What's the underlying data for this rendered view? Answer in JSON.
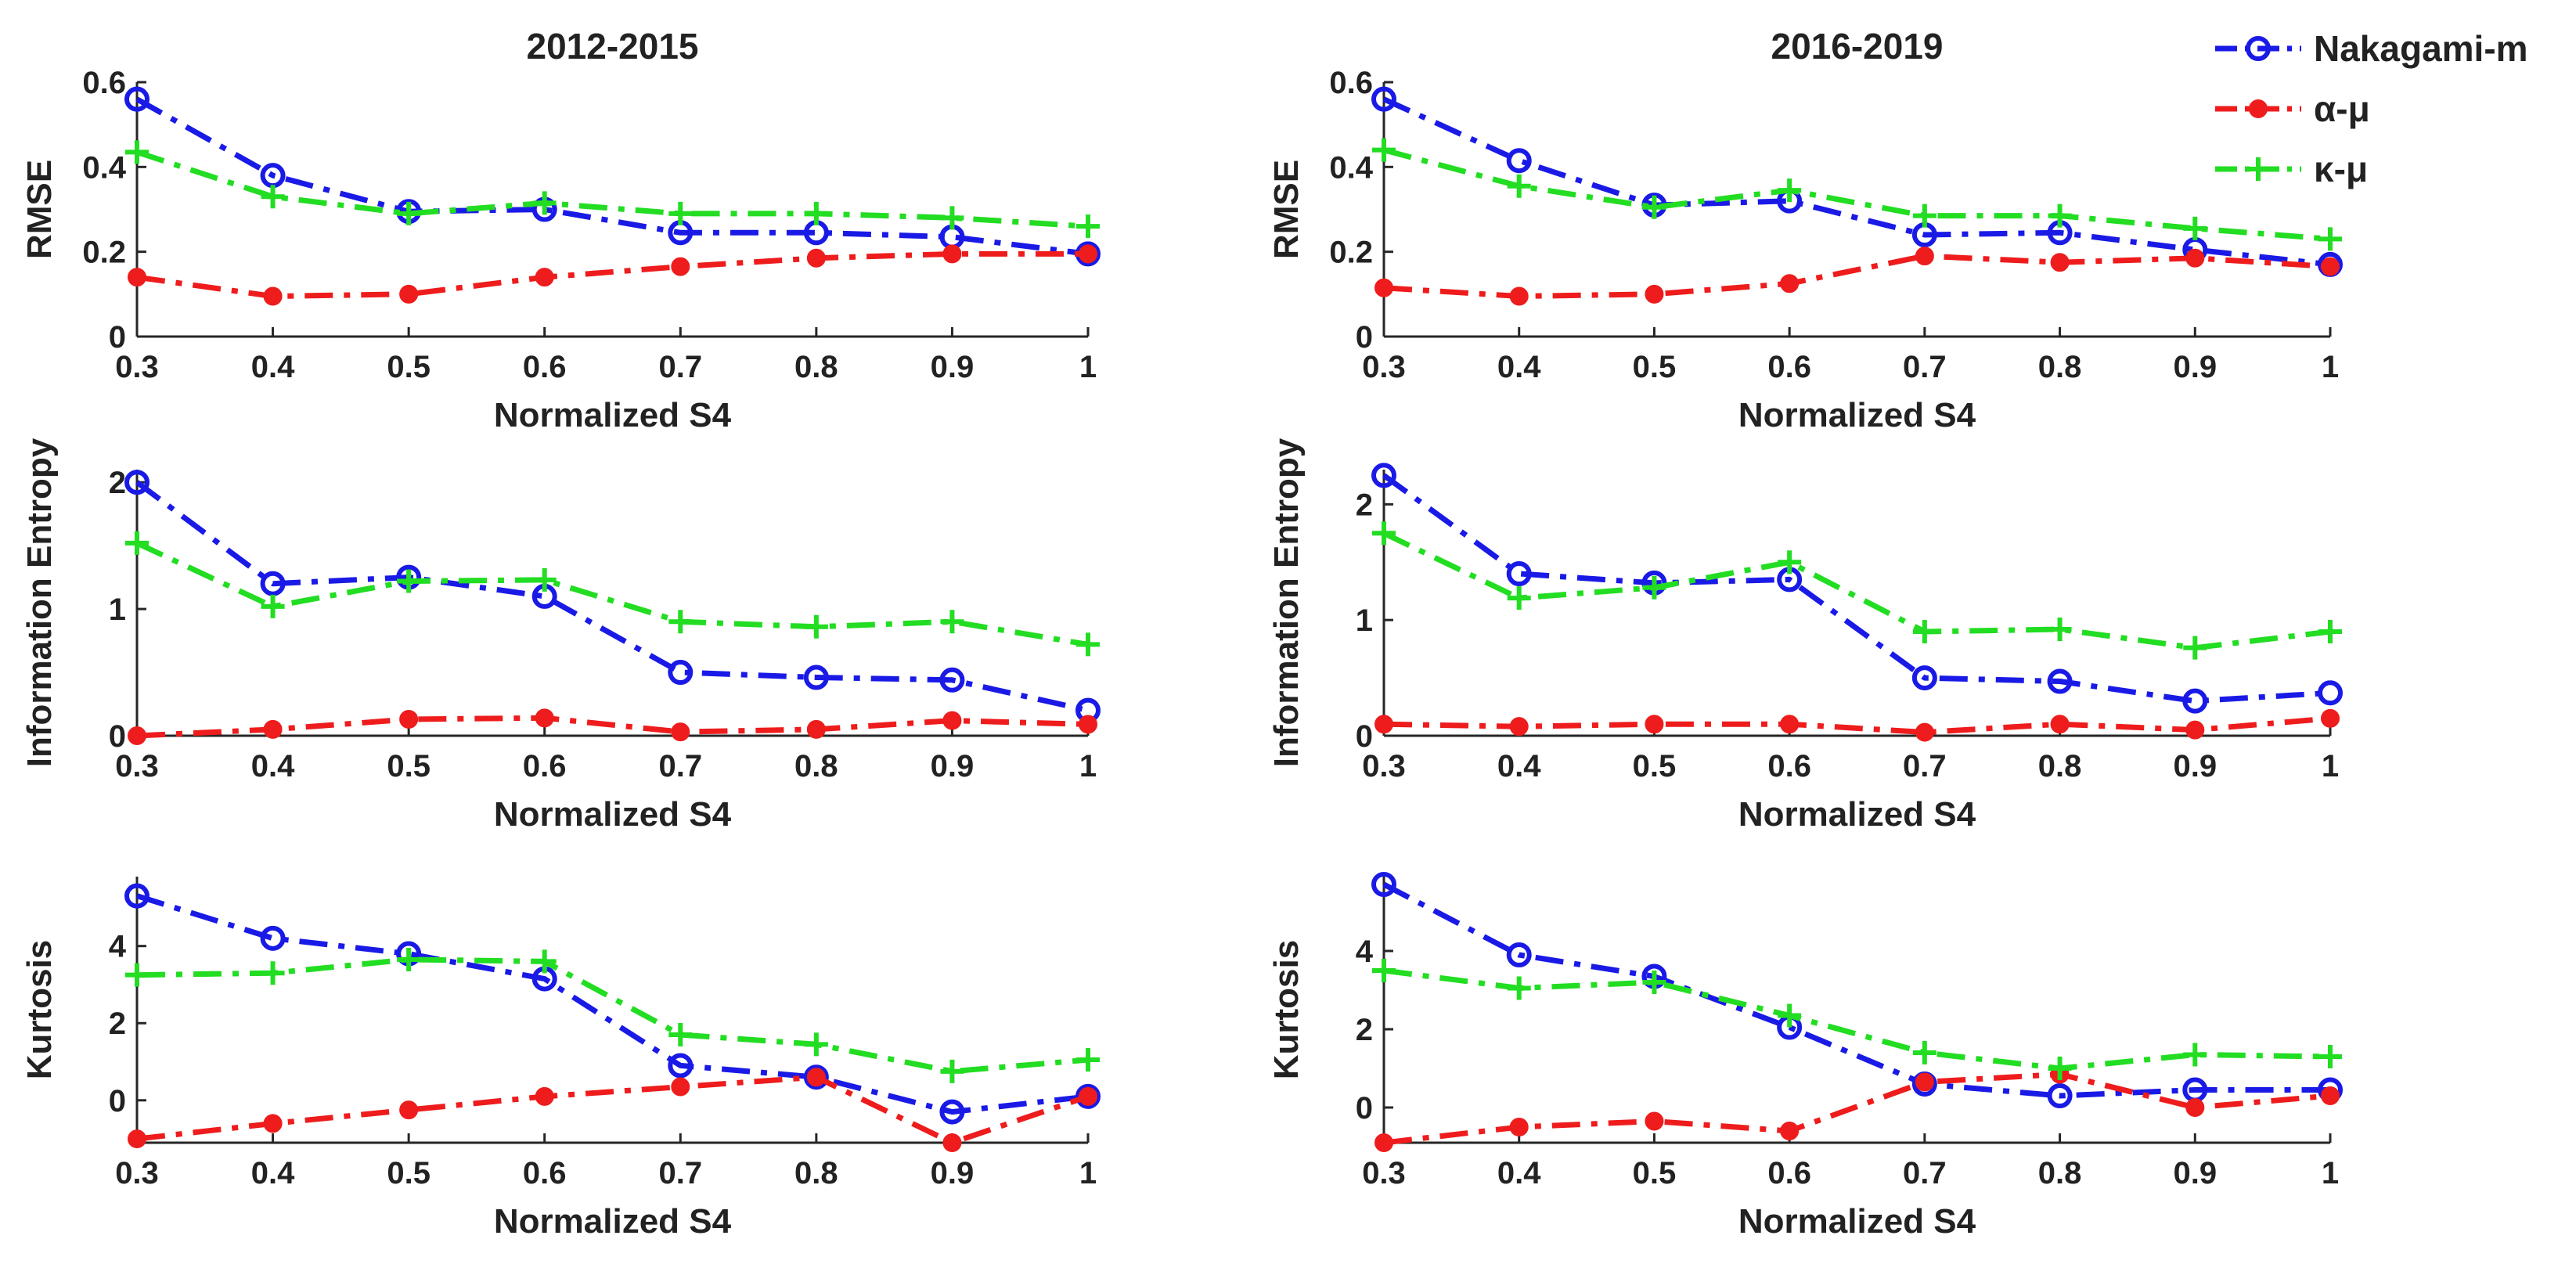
{
  "colors": {
    "Nakagami-m": "#1a1ae6",
    "α-μ": "#ee1c1c",
    "κ-μ": "#22dd22"
  },
  "legend": {
    "placement": "top-right",
    "entries": [
      {
        "name": "Nakagami-m",
        "marker": "circle"
      },
      {
        "name": "α-μ",
        "marker": "filled-circle"
      },
      {
        "name": "κ-μ",
        "marker": "plus"
      }
    ]
  },
  "chart_data": [
    {
      "type": "line",
      "title": "2012-2015",
      "xlabel": "Normalized S4",
      "ylabel": "RMSE",
      "x": [
        0.3,
        0.4,
        0.5,
        0.6,
        0.7,
        0.8,
        0.9,
        1
      ],
      "xticks": [
        "0.3",
        "0.4",
        "0.5",
        "0.6",
        "0.7",
        "0.8",
        "0.9",
        "1"
      ],
      "ylim": [
        0,
        0.6
      ],
      "yticks": [
        0,
        0.2,
        0.4,
        0.6
      ],
      "ytick_labels": [
        "0",
        "0.2",
        "0.4",
        "0.6"
      ],
      "series": [
        {
          "name": "Nakagami-m",
          "values": [
            0.56,
            0.38,
            0.295,
            0.3,
            0.245,
            0.245,
            0.235,
            0.195
          ]
        },
        {
          "name": "α-μ",
          "values": [
            0.14,
            0.095,
            0.1,
            0.14,
            0.165,
            0.185,
            0.195,
            0.195
          ]
        },
        {
          "name": "κ-μ",
          "values": [
            0.435,
            0.33,
            0.29,
            0.315,
            0.29,
            0.29,
            0.28,
            0.26
          ]
        }
      ]
    },
    {
      "type": "line",
      "title": "2016-2019",
      "xlabel": "Normalized S4",
      "ylabel": "RMSE",
      "x": [
        0.3,
        0.4,
        0.5,
        0.6,
        0.7,
        0.8,
        0.9,
        1
      ],
      "xticks": [
        "0.3",
        "0.4",
        "0.5",
        "0.6",
        "0.7",
        "0.8",
        "0.9",
        "1"
      ],
      "ylim": [
        0,
        0.6
      ],
      "yticks": [
        0,
        0.2,
        0.4,
        0.6
      ],
      "ytick_labels": [
        "0",
        "0.2",
        "0.4",
        "0.6"
      ],
      "series": [
        {
          "name": "Nakagami-m",
          "values": [
            0.56,
            0.415,
            0.31,
            0.32,
            0.24,
            0.245,
            0.205,
            0.17
          ]
        },
        {
          "name": "α-μ",
          "values": [
            0.115,
            0.095,
            0.1,
            0.125,
            0.19,
            0.175,
            0.185,
            0.165
          ]
        },
        {
          "name": "κ-μ",
          "values": [
            0.44,
            0.355,
            0.305,
            0.345,
            0.285,
            0.285,
            0.255,
            0.23
          ]
        }
      ]
    },
    {
      "type": "line",
      "title": "",
      "xlabel": "Normalized S4",
      "ylabel": "Information Entropy",
      "x": [
        0.3,
        0.4,
        0.5,
        0.6,
        0.7,
        0.8,
        0.9,
        1
      ],
      "xticks": [
        "0.3",
        "0.4",
        "0.5",
        "0.6",
        "0.7",
        "0.8",
        "0.9",
        "1"
      ],
      "ylim": [
        0,
        2.1
      ],
      "yticks": [
        0,
        1,
        2
      ],
      "ytick_labels": [
        "0",
        "1",
        "2"
      ],
      "series": [
        {
          "name": "Nakagami-m",
          "values": [
            2.0,
            1.2,
            1.25,
            1.1,
            0.5,
            0.46,
            0.44,
            0.2
          ]
        },
        {
          "name": "α-μ",
          "values": [
            0.0,
            0.05,
            0.13,
            0.14,
            0.03,
            0.05,
            0.12,
            0.09
          ]
        },
        {
          "name": "κ-μ",
          "values": [
            1.52,
            1.02,
            1.22,
            1.23,
            0.9,
            0.86,
            0.9,
            0.72
          ]
        }
      ]
    },
    {
      "type": "line",
      "title": "",
      "xlabel": "Normalized S4",
      "ylabel": "Information Entropy",
      "x": [
        0.3,
        0.4,
        0.5,
        0.6,
        0.7,
        0.8,
        0.9,
        1
      ],
      "xticks": [
        "0.3",
        "0.4",
        "0.5",
        "0.6",
        "0.7",
        "0.8",
        "0.9",
        "1"
      ],
      "ylim": [
        0,
        2.3
      ],
      "yticks": [
        0,
        1,
        2
      ],
      "ytick_labels": [
        "0",
        "1",
        "2"
      ],
      "series": [
        {
          "name": "Nakagami-m",
          "values": [
            2.25,
            1.4,
            1.32,
            1.35,
            0.5,
            0.47,
            0.3,
            0.37
          ]
        },
        {
          "name": "α-μ",
          "values": [
            0.1,
            0.08,
            0.1,
            0.1,
            0.03,
            0.1,
            0.05,
            0.15
          ]
        },
        {
          "name": "κ-μ",
          "values": [
            1.75,
            1.19,
            1.28,
            1.5,
            0.9,
            0.92,
            0.76,
            0.9
          ]
        }
      ]
    },
    {
      "type": "line",
      "title": "",
      "xlabel": "Normalized S4",
      "ylabel": "Kurtosis",
      "x": [
        0.3,
        0.4,
        0.5,
        0.6,
        0.7,
        0.8,
        0.9,
        1
      ],
      "xticks": [
        "0.3",
        "0.4",
        "0.5",
        "0.6",
        "0.7",
        "0.8",
        "0.9",
        "1"
      ],
      "ylim": [
        -1.1,
        5.8
      ],
      "yticks": [
        0,
        2,
        4
      ],
      "ytick_labels": [
        "0",
        "2",
        "4"
      ],
      "series": [
        {
          "name": "Nakagami-m",
          "values": [
            5.3,
            4.2,
            3.8,
            3.15,
            0.9,
            0.6,
            -0.3,
            0.1
          ]
        },
        {
          "name": "α-μ",
          "values": [
            -1.0,
            -0.6,
            -0.25,
            0.1,
            0.35,
            0.6,
            -1.1,
            0.1
          ]
        },
        {
          "name": "κ-μ",
          "values": [
            3.25,
            3.3,
            3.65,
            3.6,
            1.7,
            1.45,
            0.75,
            1.05
          ]
        }
      ]
    },
    {
      "type": "line",
      "title": "",
      "xlabel": "Normalized S4",
      "ylabel": "Kurtosis",
      "x": [
        0.3,
        0.4,
        0.5,
        0.6,
        0.7,
        0.8,
        0.9,
        1
      ],
      "xticks": [
        "0.3",
        "0.4",
        "0.5",
        "0.6",
        "0.7",
        "0.8",
        "0.9",
        "1"
      ],
      "ylim": [
        -0.9,
        5.9
      ],
      "yticks": [
        0,
        2,
        4
      ],
      "ytick_labels": [
        "0",
        "2",
        "4"
      ],
      "series": [
        {
          "name": "Nakagami-m",
          "values": [
            5.7,
            3.9,
            3.35,
            2.05,
            0.6,
            0.3,
            0.45,
            0.45
          ]
        },
        {
          "name": "α-μ",
          "values": [
            -0.9,
            -0.5,
            -0.35,
            -0.6,
            0.65,
            0.85,
            0.0,
            0.3
          ]
        },
        {
          "name": "κ-μ",
          "values": [
            3.5,
            3.05,
            3.2,
            2.35,
            1.4,
            1.0,
            1.35,
            1.3
          ]
        }
      ]
    }
  ]
}
